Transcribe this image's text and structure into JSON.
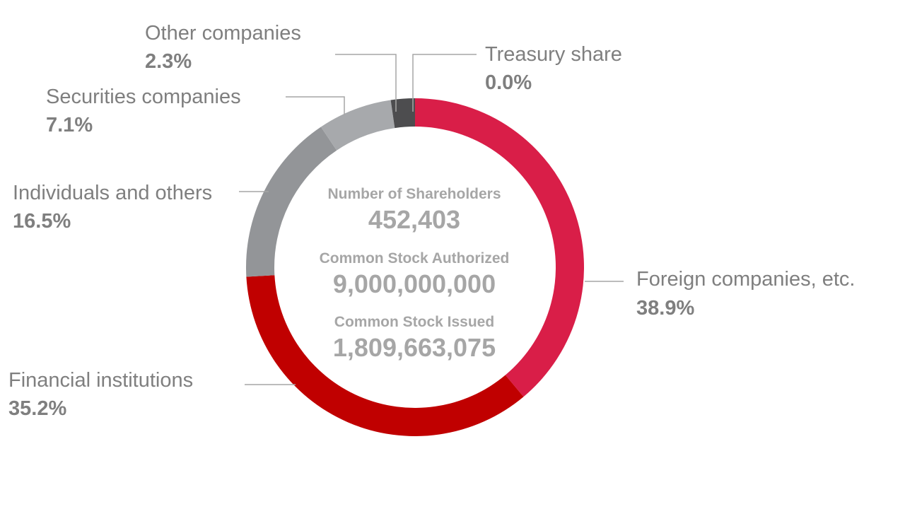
{
  "chart_data": {
    "type": "pie",
    "donut": true,
    "categories": [
      "Foreign companies, etc.",
      "Financial institutions",
      "Individuals and others",
      "Securities companies",
      "Other companies",
      "Treasury share"
    ],
    "values": [
      38.9,
      35.2,
      16.5,
      7.1,
      2.3,
      0.0
    ],
    "value_labels": [
      "38.9%",
      "35.2%",
      "16.5%",
      "7.1%",
      "2.3%",
      "0.0%"
    ],
    "colors": [
      "#d91e48",
      "#c00000",
      "#939598",
      "#a7a9ac",
      "#4d4d4f",
      "#4d4d4f"
    ],
    "center": {
      "items": [
        {
          "label": "Number of Shareholders",
          "value": "452,403"
        },
        {
          "label": "Common Stock Authorized",
          "value": "9,000,000,000"
        },
        {
          "label": "Common Stock Issued",
          "value": "1,809,663,075"
        }
      ]
    }
  },
  "colors": {
    "text": "#7f7f7f",
    "leader_line": "#a6a6a6",
    "center_text": "#a6a6a6"
  }
}
